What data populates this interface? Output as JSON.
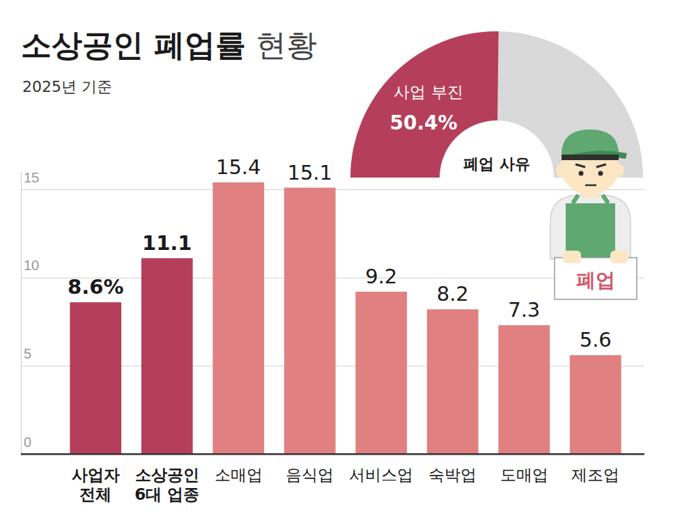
{
  "chart_data": [
    {
      "type": "bar",
      "title": "소상공인 폐업률 현황",
      "subtitle": "2025년 기준",
      "categories": [
        "사업자 전체",
        "소상공인 6대 업종",
        "소매업",
        "음식업",
        "서비스업",
        "숙박업",
        "도매업",
        "제조업"
      ],
      "values": [
        8.6,
        11.1,
        15.4,
        15.1,
        9.2,
        8.2,
        7.3,
        5.6
      ],
      "value_labels": [
        "8.6%",
        "11.1",
        "15.4",
        "15.1",
        "9.2",
        "8.2",
        "7.3",
        "5.6"
      ],
      "colors": [
        "#b53f5a",
        "#b53f5a",
        "#e08080",
        "#e08080",
        "#e08080",
        "#e08080",
        "#e08080",
        "#e08080"
      ],
      "ylim": [
        0,
        16
      ],
      "yticks": [
        0,
        5,
        10,
        15
      ],
      "grid": true,
      "data_labels": true
    },
    {
      "type": "gauge",
      "title": "폐업 사유",
      "categories": [
        "사업 부진"
      ],
      "values": [
        50.4
      ],
      "value_labels": [
        "50.4%"
      ],
      "ylim": [
        0,
        100
      ],
      "color": "#b53f5a",
      "annotations": [
        "폐업"
      ]
    }
  ]
}
